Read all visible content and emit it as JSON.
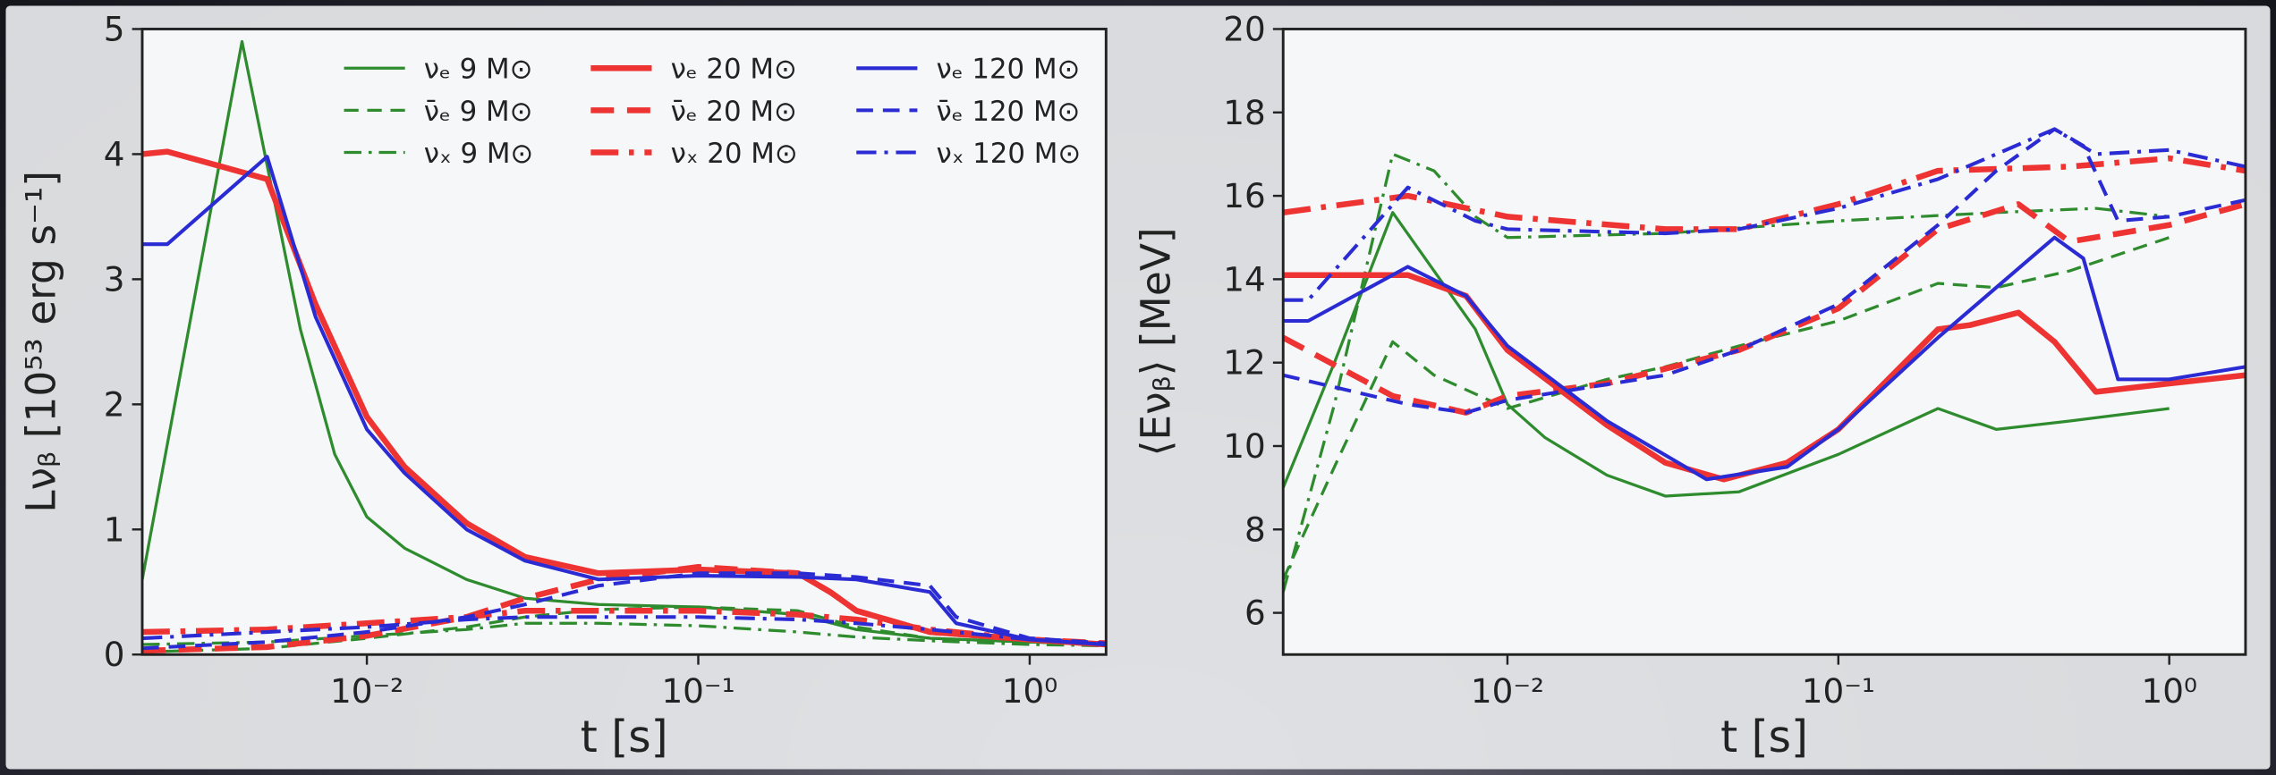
{
  "chart_data": [
    {
      "type": "line",
      "xscale": "log",
      "xlabel": "t [s]",
      "ylabel": "Lνᵦ [10⁵³ erg s⁻¹]",
      "xlim": [
        0.0021,
        1.7
      ],
      "ylim": [
        0,
        5
      ],
      "xticks": [
        {
          "value": 0.01,
          "label": "10⁻²"
        },
        {
          "value": 0.1,
          "label": "10⁻¹"
        },
        {
          "value": 1,
          "label": "10⁰"
        }
      ],
      "yticks": [
        0,
        1,
        2,
        3,
        4,
        5
      ],
      "legend": "upper right",
      "legend_columns": 3,
      "series": [
        {
          "name": "νₑ 9 M⊙",
          "color": "#2e8b2e",
          "linestyle": "solid",
          "linewidth": 2,
          "x": [
            0.0021,
            0.0042,
            0.0063,
            0.008,
            0.01,
            0.013,
            0.02,
            0.03,
            0.05,
            0.1,
            0.2,
            0.3,
            0.5,
            1,
            1.7
          ],
          "values": [
            0.6,
            4.9,
            2.6,
            1.6,
            1.1,
            0.85,
            0.6,
            0.45,
            0.4,
            0.38,
            0.32,
            0.2,
            0.13,
            0.1,
            0.08
          ]
        },
        {
          "name": "ν̄ₑ 9 M⊙",
          "color": "#2e8b2e",
          "linestyle": "dashed",
          "linewidth": 2,
          "x": [
            0.0021,
            0.005,
            0.01,
            0.02,
            0.03,
            0.05,
            0.1,
            0.2,
            0.3,
            0.5,
            1,
            1.7
          ],
          "values": [
            0.02,
            0.05,
            0.13,
            0.22,
            0.3,
            0.36,
            0.38,
            0.35,
            0.22,
            0.13,
            0.1,
            0.08
          ]
        },
        {
          "name": "νₓ 9 M⊙",
          "color": "#2e8b2e",
          "linestyle": "dashdot",
          "linewidth": 2,
          "x": [
            0.0021,
            0.005,
            0.01,
            0.02,
            0.03,
            0.05,
            0.1,
            0.2,
            0.3,
            0.5,
            1,
            1.7
          ],
          "values": [
            0.08,
            0.1,
            0.15,
            0.2,
            0.25,
            0.25,
            0.23,
            0.18,
            0.14,
            0.11,
            0.08,
            0.07
          ]
        },
        {
          "name": "νₑ 20 M⊙",
          "color": "#ee3333",
          "linestyle": "solid",
          "linewidth": 4,
          "x": [
            0.0021,
            0.0025,
            0.005,
            0.007,
            0.01,
            0.013,
            0.02,
            0.03,
            0.05,
            0.1,
            0.2,
            0.25,
            0.3,
            0.5,
            1,
            1.7
          ],
          "values": [
            4.0,
            4.02,
            3.8,
            2.8,
            1.9,
            1.5,
            1.05,
            0.78,
            0.65,
            0.68,
            0.65,
            0.5,
            0.35,
            0.18,
            0.12,
            0.08
          ]
        },
        {
          "name": "ν̄ₑ 20 M⊙",
          "color": "#ee3333",
          "linestyle": "dashed",
          "linewidth": 4,
          "x": [
            0.0021,
            0.005,
            0.01,
            0.02,
            0.03,
            0.05,
            0.1,
            0.2,
            0.25,
            0.3,
            0.5,
            1,
            1.7
          ],
          "values": [
            0.03,
            0.06,
            0.15,
            0.3,
            0.45,
            0.6,
            0.7,
            0.65,
            0.5,
            0.35,
            0.18,
            0.12,
            0.09
          ]
        },
        {
          "name": "νₓ 20 M⊙",
          "color": "#ee3333",
          "linestyle": "dashdot",
          "linewidth": 4,
          "x": [
            0.0021,
            0.005,
            0.01,
            0.02,
            0.03,
            0.05,
            0.1,
            0.2,
            0.3,
            0.5,
            1,
            1.7
          ],
          "values": [
            0.18,
            0.2,
            0.25,
            0.3,
            0.35,
            0.35,
            0.35,
            0.32,
            0.28,
            0.2,
            0.12,
            0.08
          ]
        },
        {
          "name": "νₑ 120 M⊙",
          "color": "#2b2bd4",
          "linestyle": "solid",
          "linewidth": 2.5,
          "x": [
            0.0021,
            0.0025,
            0.005,
            0.007,
            0.01,
            0.013,
            0.02,
            0.03,
            0.05,
            0.1,
            0.2,
            0.3,
            0.5,
            0.6,
            1,
            1.7
          ],
          "values": [
            3.28,
            3.28,
            3.98,
            2.7,
            1.8,
            1.45,
            1.0,
            0.75,
            0.6,
            0.63,
            0.62,
            0.6,
            0.5,
            0.25,
            0.12,
            0.08
          ]
        },
        {
          "name": "ν̄ₑ 120 M⊙",
          "color": "#2b2bd4",
          "linestyle": "dashed",
          "linewidth": 2.5,
          "x": [
            0.0021,
            0.005,
            0.01,
            0.02,
            0.03,
            0.05,
            0.1,
            0.2,
            0.3,
            0.5,
            0.6,
            1,
            1.7
          ],
          "values": [
            0.05,
            0.1,
            0.18,
            0.3,
            0.4,
            0.55,
            0.65,
            0.65,
            0.62,
            0.55,
            0.3,
            0.13,
            0.09
          ]
        },
        {
          "name": "νₓ 120 M⊙",
          "color": "#2b2bd4",
          "linestyle": "dashdot",
          "linewidth": 2.5,
          "x": [
            0.0021,
            0.005,
            0.01,
            0.02,
            0.03,
            0.05,
            0.1,
            0.2,
            0.3,
            0.5,
            1,
            1.7
          ],
          "values": [
            0.13,
            0.18,
            0.22,
            0.28,
            0.3,
            0.3,
            0.3,
            0.28,
            0.25,
            0.2,
            0.12,
            0.08
          ]
        }
      ]
    },
    {
      "type": "line",
      "xscale": "log",
      "xlabel": "t [s]",
      "ylabel": "⟨Eνᵦ⟩ [MeV]",
      "xlim": [
        0.0021,
        1.7
      ],
      "ylim": [
        5,
        20
      ],
      "xticks": [
        {
          "value": 0.01,
          "label": "10⁻²"
        },
        {
          "value": 0.1,
          "label": "10⁻¹"
        },
        {
          "value": 1,
          "label": "10⁰"
        }
      ],
      "yticks": [
        6,
        8,
        10,
        12,
        14,
        16,
        18,
        20
      ],
      "series": [
        {
          "color": "#2e8b2e",
          "linestyle": "solid",
          "linewidth": 2,
          "x": [
            0.0021,
            0.003,
            0.0045,
            0.006,
            0.008,
            0.01,
            0.013,
            0.02,
            0.03,
            0.05,
            0.1,
            0.2,
            0.3,
            0.5,
            1
          ],
          "values": [
            9.0,
            12,
            15.6,
            14.2,
            12.8,
            11.0,
            10.2,
            9.3,
            8.8,
            8.9,
            9.8,
            10.9,
            10.4,
            10.6,
            10.9
          ]
        },
        {
          "color": "#2e8b2e",
          "linestyle": "dashed",
          "linewidth": 2,
          "x": [
            0.0021,
            0.003,
            0.0045,
            0.006,
            0.01,
            0.02,
            0.03,
            0.05,
            0.1,
            0.2,
            0.3,
            0.5,
            1
          ],
          "values": [
            6.8,
            9.5,
            12.5,
            11.7,
            10.9,
            11.6,
            11.9,
            12.4,
            13.0,
            13.9,
            13.8,
            14.2,
            15.0
          ]
        },
        {
          "color": "#2e8b2e",
          "linestyle": "dashdot",
          "linewidth": 2,
          "x": [
            0.0021,
            0.003,
            0.0045,
            0.006,
            0.008,
            0.01,
            0.03,
            0.1,
            0.3,
            0.6,
            1
          ],
          "values": [
            6.5,
            11,
            17.0,
            16.6,
            15.5,
            15.0,
            15.1,
            15.4,
            15.6,
            15.7,
            15.5
          ]
        },
        {
          "color": "#ee3333",
          "linestyle": "solid",
          "linewidth": 4,
          "x": [
            0.0021,
            0.005,
            0.0075,
            0.01,
            0.02,
            0.03,
            0.045,
            0.07,
            0.1,
            0.2,
            0.25,
            0.35,
            0.45,
            0.6,
            1,
            1.7
          ],
          "values": [
            14.1,
            14.1,
            13.6,
            12.3,
            10.5,
            9.6,
            9.2,
            9.6,
            10.4,
            12.8,
            12.9,
            13.2,
            12.5,
            11.3,
            11.5,
            11.7
          ]
        },
        {
          "color": "#ee3333",
          "linestyle": "dashed",
          "linewidth": 4,
          "x": [
            0.0021,
            0.0045,
            0.0075,
            0.01,
            0.02,
            0.05,
            0.1,
            0.2,
            0.35,
            0.5,
            1,
            1.7
          ],
          "values": [
            12.6,
            11.2,
            10.8,
            11.2,
            11.5,
            12.3,
            13.3,
            15.2,
            15.8,
            14.9,
            15.3,
            15.8
          ]
        },
        {
          "color": "#ee3333",
          "linestyle": "dashdot",
          "linewidth": 4,
          "x": [
            0.0021,
            0.005,
            0.01,
            0.03,
            0.05,
            0.1,
            0.2,
            0.5,
            1,
            1.7
          ],
          "values": [
            15.6,
            16.0,
            15.5,
            15.2,
            15.2,
            15.8,
            16.6,
            16.7,
            16.9,
            16.6
          ]
        },
        {
          "color": "#2b2bd4",
          "linestyle": "solid",
          "linewidth": 2.5,
          "x": [
            0.0021,
            0.0025,
            0.005,
            0.0075,
            0.01,
            0.02,
            0.04,
            0.07,
            0.1,
            0.2,
            0.3,
            0.45,
            0.55,
            0.7,
            1,
            1.7
          ],
          "values": [
            13.0,
            13.0,
            14.3,
            13.6,
            12.4,
            10.6,
            9.2,
            9.5,
            10.4,
            12.6,
            13.8,
            15.0,
            14.5,
            11.6,
            11.6,
            11.9
          ]
        },
        {
          "color": "#2b2bd4",
          "linestyle": "dashed",
          "linewidth": 2.5,
          "x": [
            0.0021,
            0.005,
            0.0075,
            0.01,
            0.03,
            0.05,
            0.1,
            0.2,
            0.3,
            0.45,
            0.55,
            0.7,
            1,
            1.7
          ],
          "values": [
            11.7,
            11.0,
            10.8,
            11.1,
            11.7,
            12.3,
            13.4,
            15.3,
            16.6,
            17.6,
            17.2,
            15.4,
            15.5,
            15.9
          ]
        },
        {
          "color": "#2b2bd4",
          "linestyle": "dashdot",
          "linewidth": 2.5,
          "x": [
            0.0021,
            0.0025,
            0.005,
            0.008,
            0.01,
            0.03,
            0.05,
            0.1,
            0.2,
            0.45,
            0.6,
            1,
            1.7
          ],
          "values": [
            13.5,
            13.5,
            16.2,
            15.4,
            15.2,
            15.1,
            15.2,
            15.7,
            16.4,
            17.6,
            17.0,
            17.1,
            16.7
          ]
        }
      ]
    }
  ]
}
